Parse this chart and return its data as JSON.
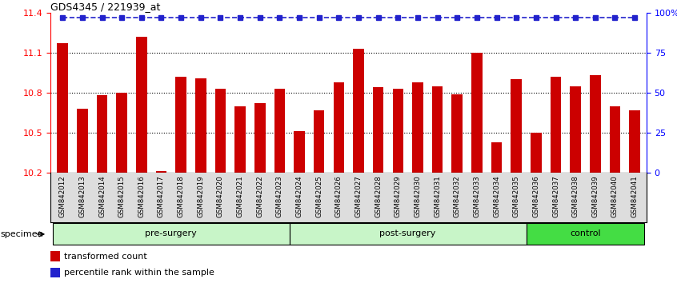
{
  "title": "GDS4345 / 221939_at",
  "samples": [
    "GSM842012",
    "GSM842013",
    "GSM842014",
    "GSM842015",
    "GSM842016",
    "GSM842017",
    "GSM842018",
    "GSM842019",
    "GSM842020",
    "GSM842021",
    "GSM842022",
    "GSM842023",
    "GSM842024",
    "GSM842025",
    "GSM842026",
    "GSM842027",
    "GSM842028",
    "GSM842029",
    "GSM842030",
    "GSM842031",
    "GSM842032",
    "GSM842033",
    "GSM842034",
    "GSM842035",
    "GSM842036",
    "GSM842037",
    "GSM842038",
    "GSM842039",
    "GSM842040",
    "GSM842041"
  ],
  "bar_values": [
    11.17,
    10.68,
    10.78,
    10.8,
    11.22,
    10.21,
    10.92,
    10.91,
    10.83,
    10.7,
    10.72,
    10.83,
    10.51,
    10.67,
    10.88,
    11.13,
    10.84,
    10.83,
    10.88,
    10.85,
    10.79,
    11.1,
    10.43,
    10.9,
    10.5,
    10.92,
    10.85,
    10.93,
    10.7,
    10.67
  ],
  "percentile_values": [
    97,
    97,
    97,
    97,
    97,
    97,
    97,
    97,
    97,
    97,
    97,
    97,
    97,
    97,
    97,
    97,
    97,
    97,
    97,
    97,
    97,
    97,
    97,
    97,
    97,
    97,
    97,
    97,
    97,
    97
  ],
  "groups": [
    {
      "name": "pre-surgery",
      "start": 0,
      "end": 12,
      "color": "#C8F5C8"
    },
    {
      "name": "post-surgery",
      "start": 12,
      "end": 24,
      "color": "#C8F5C8"
    },
    {
      "name": "control",
      "start": 24,
      "end": 30,
      "color": "#44DD44"
    }
  ],
  "bar_color": "#CC0000",
  "percentile_color": "#2222CC",
  "ylim_left": [
    10.2,
    11.4
  ],
  "ylim_right": [
    0,
    100
  ],
  "yticks_left": [
    10.2,
    10.5,
    10.8,
    11.1,
    11.4
  ],
  "yticks_right": [
    0,
    25,
    50,
    75,
    100
  ],
  "ytick_labels_right": [
    "0",
    "25",
    "50",
    "75",
    "100%"
  ],
  "dotted_lines": [
    10.5,
    10.8,
    11.1
  ],
  "group_label": "specimen",
  "legend_items": [
    {
      "color": "#CC0000",
      "label": "transformed count"
    },
    {
      "color": "#2222CC",
      "label": "percentile rank within the sample"
    }
  ]
}
